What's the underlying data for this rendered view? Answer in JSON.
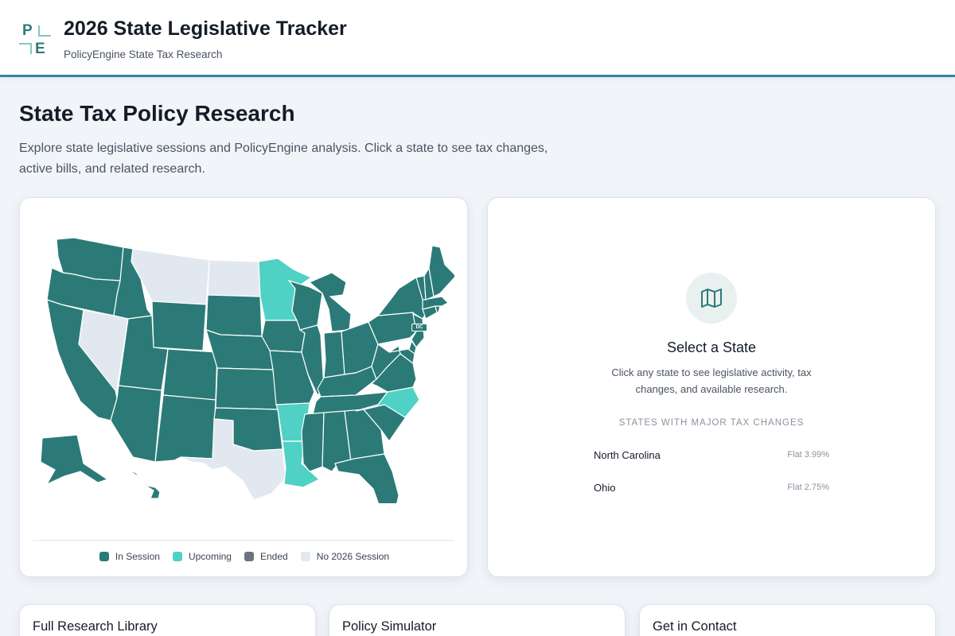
{
  "header": {
    "logo": {
      "letters": [
        "P",
        "E"
      ]
    },
    "title": "2026 State Legislative Tracker",
    "subtitle": "PolicyEngine State Tax Research"
  },
  "intro": {
    "title": "State Tax Policy Research",
    "description": "Explore state legislative sessions and PolicyEngine analysis. Click a state to see tax changes, active bills, and related research."
  },
  "map": {
    "dc_label": "DC",
    "colors": {
      "in_session": "#2b7a78",
      "upcoming": "#4fd1c5",
      "ended": "#6b7280",
      "no_session": "#e2e8f0"
    },
    "status_groups": {
      "upcoming": [
        "Minnesota",
        "Arkansas",
        "Louisiana",
        "North Carolina"
      ],
      "no_session": [
        "Montana",
        "North Dakota",
        "Nevada",
        "Texas"
      ]
    },
    "legend": [
      {
        "label": "In Session",
        "color": "#2b7a78"
      },
      {
        "label": "Upcoming",
        "color": "#4fd1c5"
      },
      {
        "label": "Ended",
        "color": "#6b7280"
      },
      {
        "label": "No 2026 Session",
        "color": "#e2e8f0"
      }
    ]
  },
  "detail": {
    "icon": "map-icon",
    "title": "Select a State",
    "description": "Click any state to see legislative activity, tax changes, and available research.",
    "major_heading": "STATES WITH MAJOR TAX CHANGES",
    "major_states": [
      {
        "name": "North Carolina",
        "rate": "Flat 3.99%"
      },
      {
        "name": "Ohio",
        "rate": "Flat 2.75%"
      }
    ]
  },
  "bottom_cards": [
    {
      "title": "Full Research Library"
    },
    {
      "title": "Policy Simulator"
    },
    {
      "title": "Get in Contact"
    }
  ]
}
